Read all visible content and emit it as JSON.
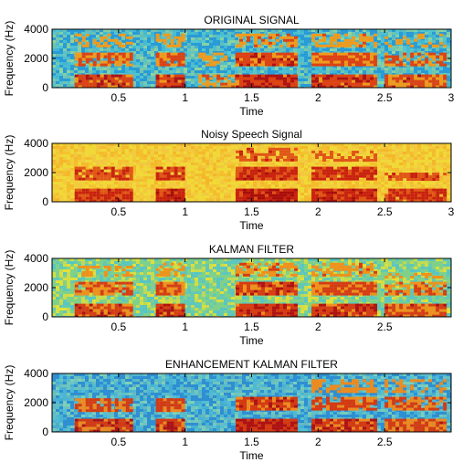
{
  "chart_data": [
    {
      "type": "heatmap",
      "title": "ORIGINAL SIGNAL",
      "xlabel": "Time",
      "ylabel": "Frequency (Hz)",
      "xlim": [
        0,
        3
      ],
      "ylim": [
        0,
        4000
      ],
      "xticks": [
        0.5,
        1,
        1.5,
        2,
        2.5,
        3
      ],
      "xtick_labels": [
        "0.5",
        "1",
        "1.5",
        "2",
        "2.5",
        "3"
      ],
      "yticks": [
        0,
        2000,
        4000
      ],
      "ytick_labels": [
        "0",
        "2000",
        "4000"
      ],
      "colormap": "jet",
      "noise_floor": "low",
      "background_colors": [
        "#2a9bd6",
        "#55c8cf",
        "#8fd6a0"
      ],
      "energy_colors": [
        "#e8e020",
        "#f39a1a",
        "#e04010",
        "#b01010"
      ],
      "regions": [
        {
          "t": [
            0.17,
            0.6
          ],
          "f": [
            0,
            4000
          ],
          "intensity": 0.75
        },
        {
          "t": [
            0.78,
            0.98
          ],
          "f": [
            0,
            4000
          ],
          "intensity": 0.85
        },
        {
          "t": [
            1.1,
            1.4
          ],
          "f": [
            0,
            3000
          ],
          "intensity": 0.5
        },
        {
          "t": [
            1.38,
            1.82
          ],
          "f": [
            0,
            4000
          ],
          "intensity": 0.95
        },
        {
          "t": [
            1.95,
            2.42
          ],
          "f": [
            0,
            4000
          ],
          "intensity": 0.85
        },
        {
          "t": [
            2.5,
            2.95
          ],
          "f": [
            0,
            3800
          ],
          "intensity": 0.7
        }
      ]
    },
    {
      "type": "heatmap",
      "title": "Noisy Speech Signal",
      "xlabel": "Time",
      "ylabel": "Frequency (Hz)",
      "xlim": [
        0,
        3
      ],
      "ylim": [
        0,
        4000
      ],
      "xticks": [
        0.5,
        1,
        1.5,
        2,
        2.5,
        3
      ],
      "xtick_labels": [
        "0.5",
        "1",
        "1.5",
        "2",
        "2.5",
        "3"
      ],
      "yticks": [
        0,
        2000,
        4000
      ],
      "ytick_labels": [
        "0",
        "2000",
        "4000"
      ],
      "colormap": "jet",
      "noise_floor": "high",
      "background_colors": [
        "#f0d838",
        "#f4b52a",
        "#f3c640"
      ],
      "energy_colors": [
        "#f08a20",
        "#e05518",
        "#c82010",
        "#a80c0c"
      ],
      "regions": [
        {
          "t": [
            0.17,
            0.6
          ],
          "f": [
            0,
            2500
          ],
          "intensity": 0.7
        },
        {
          "t": [
            0.78,
            0.98
          ],
          "f": [
            0,
            2500
          ],
          "intensity": 0.8
        },
        {
          "t": [
            1.38,
            1.82
          ],
          "f": [
            0,
            3800
          ],
          "intensity": 0.9
        },
        {
          "t": [
            1.95,
            2.42
          ],
          "f": [
            0,
            3500
          ],
          "intensity": 0.8
        },
        {
          "t": [
            2.5,
            2.95
          ],
          "f": [
            0,
            2000
          ],
          "intensity": 0.65
        }
      ]
    },
    {
      "type": "heatmap",
      "title": "KALMAN FILTER",
      "xlabel": "Time",
      "ylabel": "Frequency (Hz)",
      "xlim": [
        0,
        3
      ],
      "ylim": [
        0,
        4000
      ],
      "xticks": [
        0.5,
        1,
        1.5,
        2,
        2.5
      ],
      "xtick_labels": [
        "0.5",
        "1",
        "1.5",
        "2",
        "2.5"
      ],
      "yticks": [
        0,
        2000,
        4000
      ],
      "ytick_labels": [
        "0",
        "2000",
        "4000"
      ],
      "colormap": "jet",
      "noise_floor": "medium",
      "background_colors": [
        "#7fd18a",
        "#e6e036",
        "#56c4c9"
      ],
      "energy_colors": [
        "#e8e020",
        "#f0901c",
        "#d83a12",
        "#b01010"
      ],
      "regions": [
        {
          "t": [
            0.17,
            0.6
          ],
          "f": [
            0,
            3500
          ],
          "intensity": 0.75
        },
        {
          "t": [
            0.78,
            0.98
          ],
          "f": [
            0,
            4000
          ],
          "intensity": 0.85
        },
        {
          "t": [
            1.38,
            1.82
          ],
          "f": [
            0,
            4000
          ],
          "intensity": 0.95
        },
        {
          "t": [
            1.95,
            2.42
          ],
          "f": [
            0,
            3800
          ],
          "intensity": 0.85
        },
        {
          "t": [
            2.5,
            2.95
          ],
          "f": [
            0,
            3000
          ],
          "intensity": 0.7
        }
      ]
    },
    {
      "type": "heatmap",
      "title": "ENHANCEMENT KALMAN FILTER",
      "xlabel": "Time",
      "ylabel": "Frequency (Hz)",
      "xlim": [
        0,
        3
      ],
      "ylim": [
        0,
        4000
      ],
      "xticks": [
        0.5,
        1,
        1.5,
        2,
        2.5
      ],
      "xtick_labels": [
        "0.5",
        "1",
        "1.5",
        "2",
        "2.5"
      ],
      "yticks": [
        0,
        2000,
        4000
      ],
      "ytick_labels": [
        "0",
        "2000",
        "4000"
      ],
      "colormap": "jet",
      "noise_floor": "low",
      "background_colors": [
        "#2f8fd2",
        "#55c1d3",
        "#7fd2b8"
      ],
      "energy_colors": [
        "#f0d030",
        "#f08a1c",
        "#d8380f",
        "#b01010"
      ],
      "regions": [
        {
          "t": [
            0.17,
            0.6
          ],
          "f": [
            0,
            2300
          ],
          "intensity": 0.8
        },
        {
          "t": [
            0.78,
            0.98
          ],
          "f": [
            0,
            2300
          ],
          "intensity": 0.85
        },
        {
          "t": [
            1.38,
            1.82
          ],
          "f": [
            0,
            2800
          ],
          "intensity": 0.95
        },
        {
          "t": [
            1.95,
            2.42
          ],
          "f": [
            0,
            3600
          ],
          "intensity": 0.8
        },
        {
          "t": [
            2.5,
            2.95
          ],
          "f": [
            0,
            3600
          ],
          "intensity": 0.7
        }
      ]
    }
  ]
}
